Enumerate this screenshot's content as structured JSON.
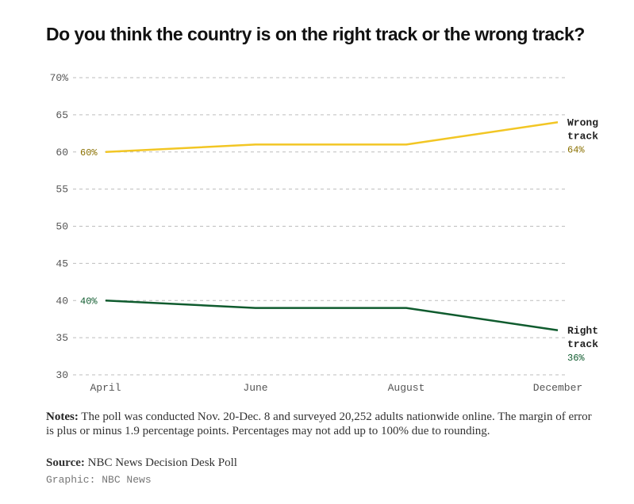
{
  "chart_data": {
    "type": "line",
    "title": "Do you think the country is on the right track or the wrong track?",
    "categories": [
      "April",
      "June",
      "August",
      "December"
    ],
    "ylim": [
      30,
      70
    ],
    "yticks": [
      "30",
      "35",
      "40",
      "45",
      "50",
      "55",
      "60",
      "65",
      "70%"
    ],
    "ytick_values": [
      30,
      35,
      40,
      45,
      50,
      55,
      60,
      65,
      70
    ],
    "xlabel": "",
    "ylabel": "",
    "series": [
      {
        "name": "Wrong track",
        "name_lines": [
          "Wrong",
          "track"
        ],
        "values": [
          60,
          61,
          61,
          64
        ],
        "start_label": "60%",
        "end_label": "64%",
        "color": "#f2c624",
        "label_color": "#8a7000"
      },
      {
        "name": "Right track",
        "name_lines": [
          "Right",
          "track"
        ],
        "values": [
          40,
          39,
          39,
          36
        ],
        "start_label": "40%",
        "end_label": "36%",
        "color": "#0f5b2e",
        "label_color": "#0f5b2e"
      }
    ]
  },
  "notes": {
    "label": "Notes:",
    "text": " The poll was conducted Nov. 20-Dec. 8 and surveyed 20,252 adults nationwide online. The margin of error is plus or minus 1.9 percentage points. Percentages may not add up to 100% due to rounding."
  },
  "source": {
    "label": "Source:",
    "text": " NBC News Decision Desk Poll"
  },
  "credit": "Graphic: NBC News"
}
